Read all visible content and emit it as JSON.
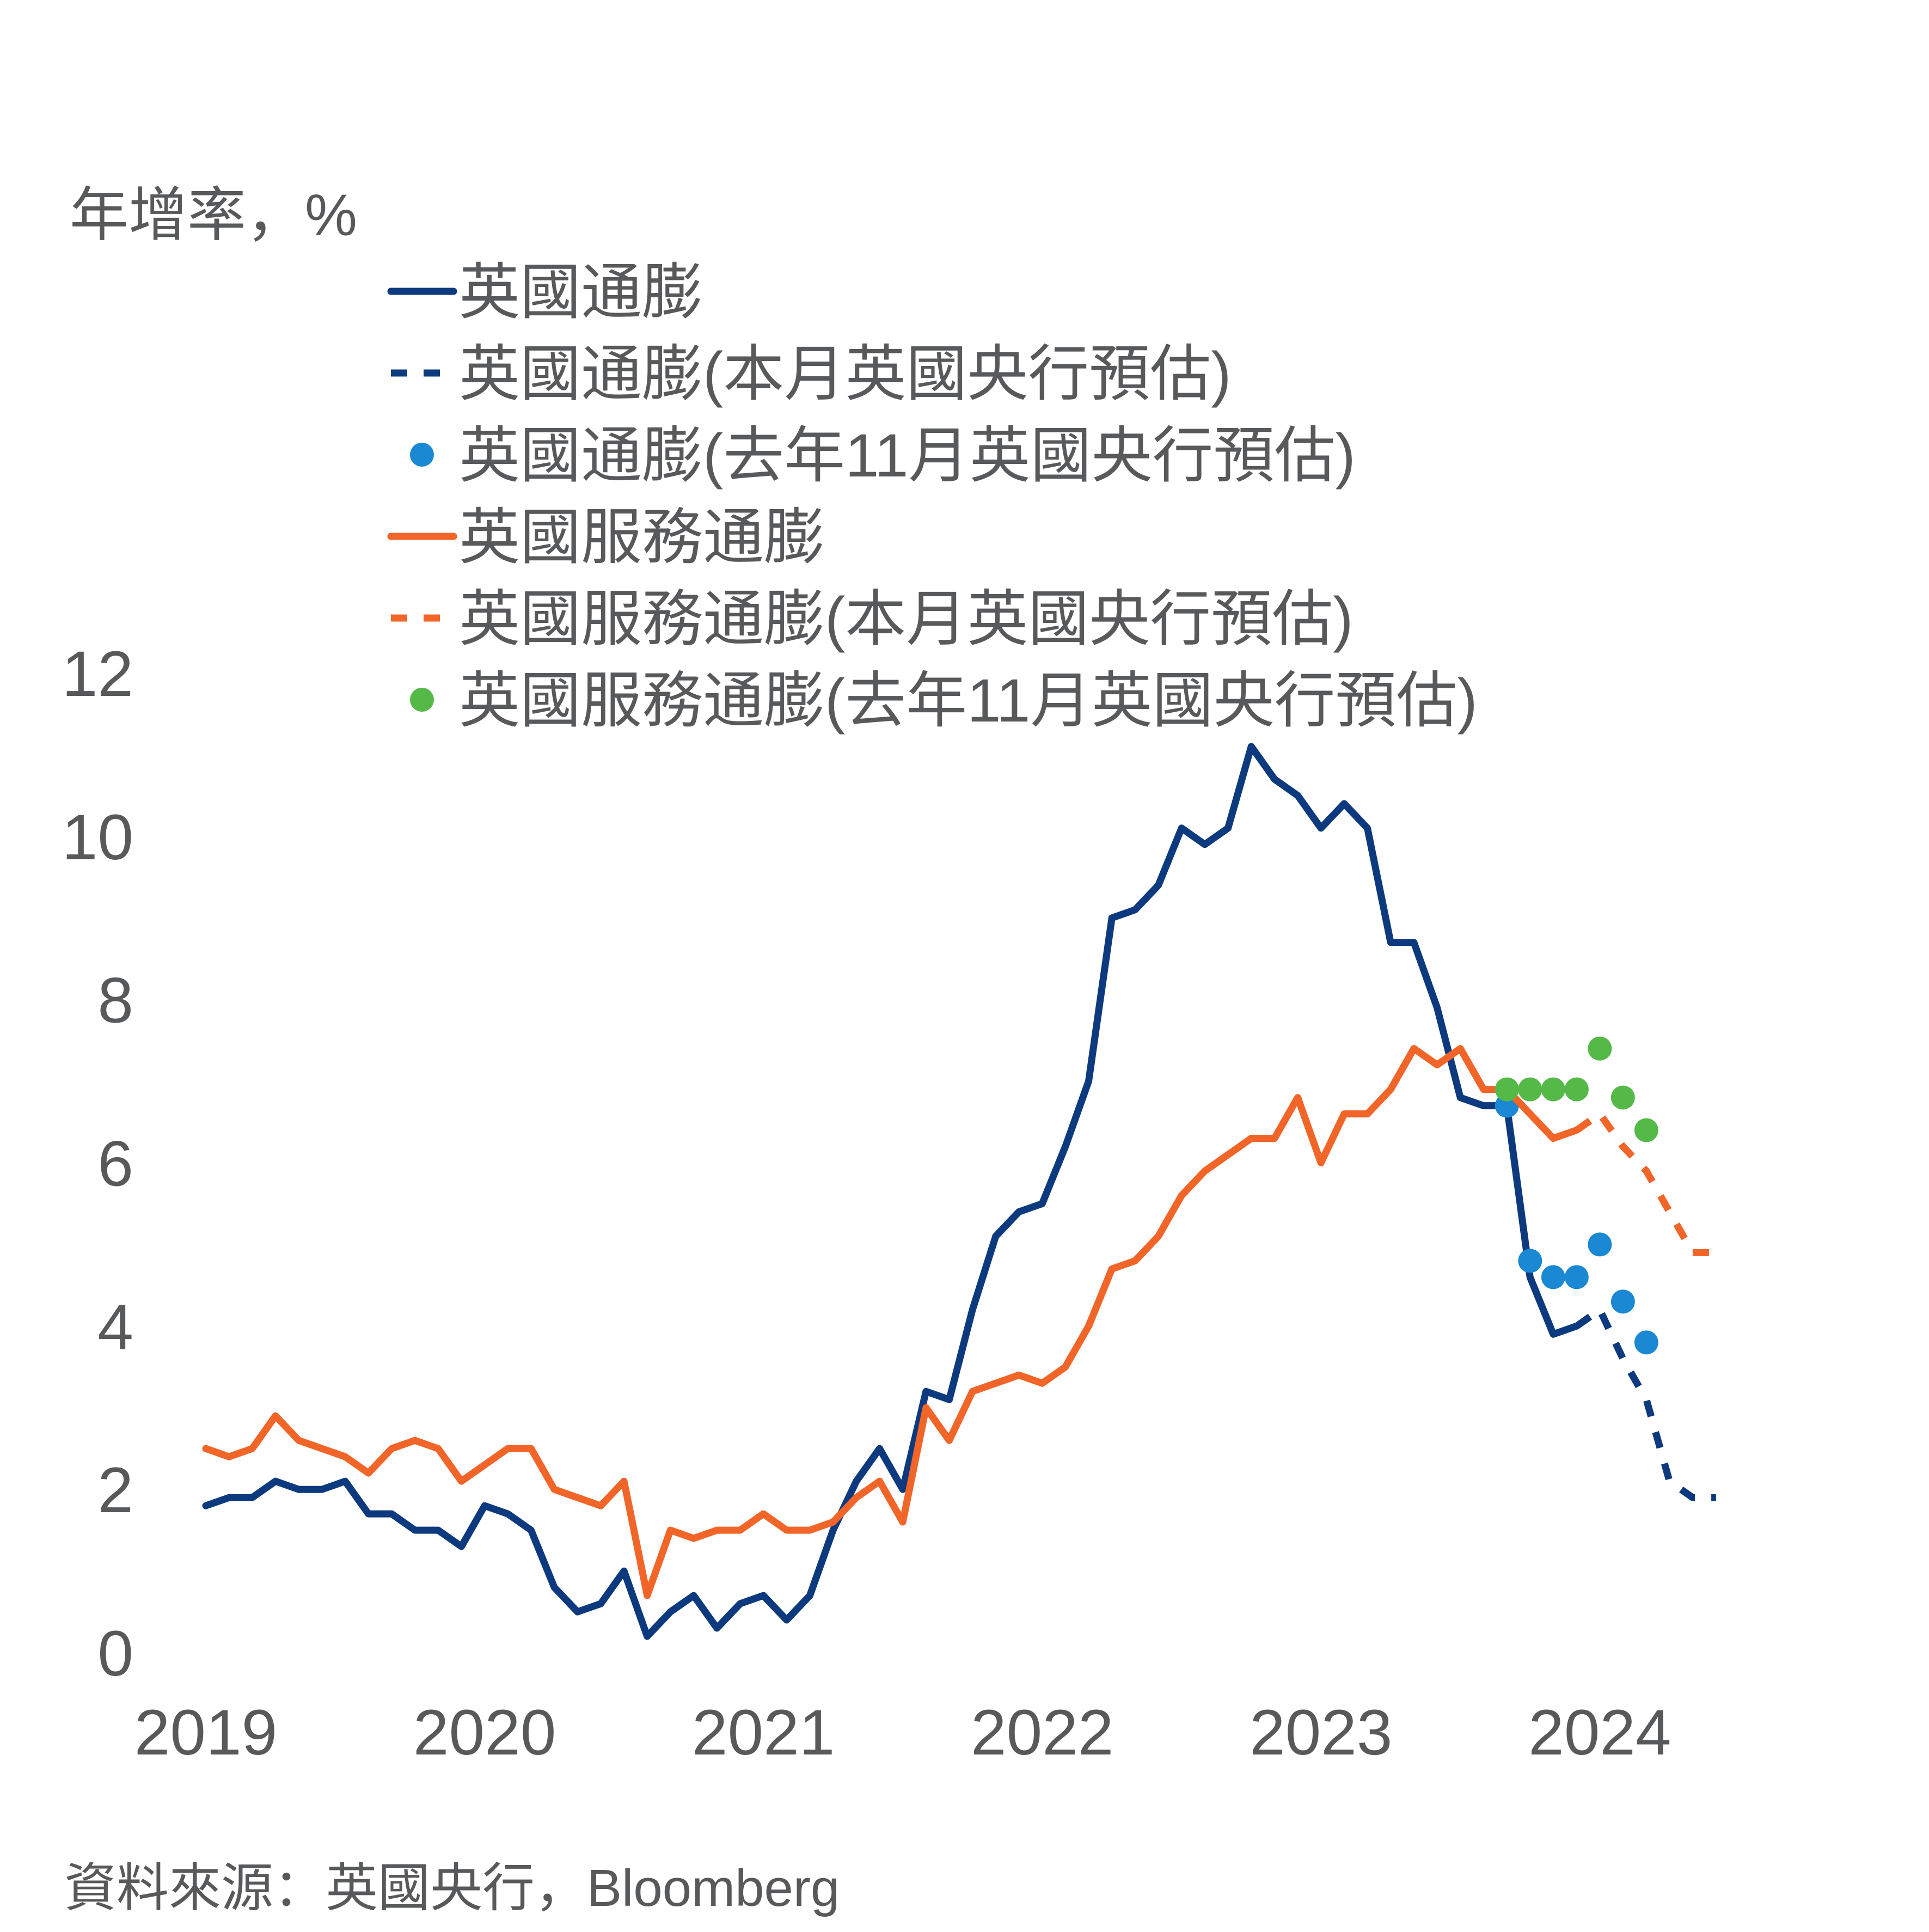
{
  "chart_data": {
    "type": "line",
    "title": "",
    "ylabel": "年增率，%",
    "xlabel": "",
    "ylim": [
      0,
      12
    ],
    "y_ticks": [
      "0",
      "2",
      "4",
      "6",
      "8",
      "10",
      "12"
    ],
    "x_ticks": [
      "2019",
      "2020",
      "2021",
      "2022",
      "2023",
      "2024"
    ],
    "x_tick_values": [
      2019,
      2020,
      2021,
      2022,
      2023,
      2024
    ],
    "xlim": [
      2019,
      2024.55
    ],
    "grid": false,
    "legend_position": "top-left",
    "series": [
      {
        "name": "英國通膨",
        "color": "#0d3a7e",
        "style": "solid",
        "x_start": 2019.0,
        "x_step": 0.08333,
        "values": [
          1.8,
          1.9,
          1.9,
          2.1,
          2.0,
          2.0,
          2.1,
          1.7,
          1.7,
          1.5,
          1.5,
          1.3,
          1.8,
          1.7,
          1.5,
          0.8,
          0.5,
          0.6,
          1.0,
          0.2,
          0.5,
          0.7,
          0.3,
          0.6,
          0.7,
          0.4,
          0.7,
          1.5,
          2.1,
          2.5,
          2.0,
          3.2,
          3.1,
          4.2,
          5.1,
          5.4,
          5.5,
          6.2,
          7.0,
          9.0,
          9.1,
          9.4,
          10.1,
          9.9,
          10.1,
          11.1,
          10.7,
          10.5,
          10.1,
          10.4,
          10.1,
          8.7,
          8.7,
          7.9,
          6.8,
          6.7,
          6.7,
          4.6,
          3.9,
          4.0
        ]
      },
      {
        "name": "英國通膨(本月英國央行預估)",
        "color": "#0d3a7e",
        "style": "dashed",
        "x": [
          2023.917,
          2024.0,
          2024.083,
          2024.167,
          2024.25,
          2024.333,
          2024.417
        ],
        "values": [
          4.0,
          4.2,
          3.6,
          3.1,
          2.1,
          1.9,
          1.9
        ]
      },
      {
        "name": "英國通膨(去年11月英國央行預估)",
        "color": "#1a88d3",
        "style": "dots",
        "x": [
          2023.667,
          2023.75,
          2023.833,
          2023.917,
          2024.0,
          2024.083,
          2024.167
        ],
        "values": [
          6.7,
          4.8,
          4.6,
          4.6,
          5.0,
          4.3,
          3.8
        ]
      },
      {
        "name": "英國服務通膨",
        "color": "#f26528",
        "style": "solid",
        "x_start": 2019.0,
        "x_step": 0.08333,
        "values": [
          2.5,
          2.4,
          2.5,
          2.9,
          2.6,
          2.5,
          2.4,
          2.2,
          2.5,
          2.6,
          2.5,
          2.1,
          2.3,
          2.5,
          2.5,
          2.0,
          1.9,
          1.8,
          2.1,
          0.7,
          1.5,
          1.4,
          1.5,
          1.5,
          1.7,
          1.5,
          1.5,
          1.6,
          1.9,
          2.1,
          1.6,
          3.0,
          2.6,
          3.2,
          3.3,
          3.4,
          3.3,
          3.5,
          4.0,
          4.7,
          4.8,
          5.1,
          5.6,
          5.9,
          6.1,
          6.3,
          6.3,
          6.8,
          6.0,
          6.6,
          6.6,
          6.9,
          7.4,
          7.2,
          7.4,
          6.9,
          6.9,
          6.6,
          6.3,
          6.4
        ]
      },
      {
        "name": "英國服務通膨(本月英國央行預估)",
        "color": "#f26528",
        "style": "dashed",
        "x": [
          2023.917,
          2024.0,
          2024.083,
          2024.167,
          2024.25,
          2024.333,
          2024.417
        ],
        "values": [
          6.4,
          6.6,
          6.2,
          5.9,
          5.4,
          4.9,
          4.9
        ]
      },
      {
        "name": "英國服務通膨(去年11月英國央行預估)",
        "color": "#55b948",
        "style": "dots",
        "x": [
          2023.667,
          2023.75,
          2023.833,
          2023.917,
          2024.0,
          2024.083,
          2024.167
        ],
        "values": [
          6.9,
          6.9,
          6.9,
          6.9,
          7.4,
          6.8,
          6.4
        ]
      }
    ]
  },
  "legend": [
    {
      "label": "英國通膨",
      "color": "#0d3a7e",
      "style": "solid"
    },
    {
      "label": "英國通膨(本月英國央行預估)",
      "color": "#0d3a7e",
      "style": "dashed"
    },
    {
      "label": "英國通膨(去年11月英國央行預估)",
      "color": "#1a88d3",
      "style": "dot"
    },
    {
      "label": "英國服務通膨",
      "color": "#f26528",
      "style": "solid"
    },
    {
      "label": "英國服務通膨(本月英國央行預估)",
      "color": "#f26528",
      "style": "dashed"
    },
    {
      "label": "英國服務通膨(去年11月英國央行預估)",
      "color": "#55b948",
      "style": "dot"
    }
  ],
  "source": "資料來源：英國央行，Bloomberg"
}
